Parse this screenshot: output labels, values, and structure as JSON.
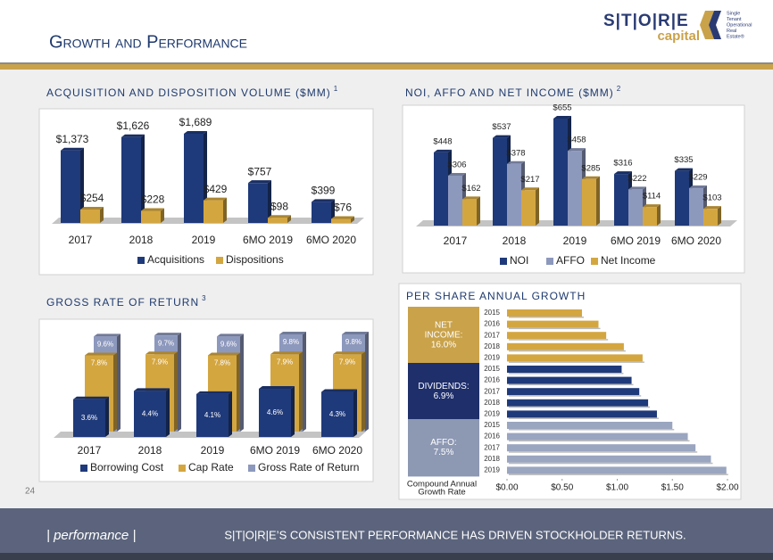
{
  "header": {
    "title": "Growth and Performance",
    "logo": {
      "name": "S|T|O|R|E",
      "sub": "capital",
      "tagline": [
        "Single",
        "Tenant",
        "Operational",
        "Real",
        "Estate®"
      ]
    }
  },
  "page_number": 24,
  "footer": {
    "section": "| performance |",
    "message": "S|T|O|R|E’S CONSISTENT PERFORMANCE HAS DRIVEN STOCKHOLDER RETURNS."
  },
  "chart_data": [
    {
      "type": "bar",
      "title": "ACQUISITION AND DISPOSITION VOLUME ($MM)",
      "footnote": 1,
      "categories": [
        "2017",
        "2018",
        "2019",
        "6MO 2019",
        "6MO 2020"
      ],
      "series": [
        {
          "name": "Acquisitions",
          "color": "#1f3a7a",
          "values": [
            1373,
            1626,
            1689,
            757,
            399
          ],
          "value_labels": [
            "$1,373",
            "$1,626",
            "$1,689",
            "$757",
            "$399"
          ]
        },
        {
          "name": "Dispositions",
          "color": "#d4a640",
          "values": [
            254,
            228,
            429,
            98,
            76
          ],
          "value_labels": [
            "$254",
            "$228",
            "$429",
            "$98",
            "$76"
          ]
        }
      ]
    },
    {
      "type": "bar",
      "title": "NOI, AFFO AND NET INCOME ($MM)",
      "footnote": 2,
      "categories": [
        "2017",
        "2018",
        "2019",
        "6MO 2019",
        "6MO 2020"
      ],
      "series": [
        {
          "name": "NOI",
          "color": "#1f3a7a",
          "values": [
            448,
            537,
            655,
            316,
            335
          ],
          "value_labels": [
            "$448",
            "$537",
            "$655",
            "$316",
            "$335"
          ]
        },
        {
          "name": "AFFO",
          "color": "#8d98bd",
          "values": [
            306,
            378,
            458,
            222,
            229
          ],
          "value_labels": [
            "$306",
            "$378",
            "$458",
            "$222",
            "$229"
          ]
        },
        {
          "name": "Net Income",
          "color": "#d4a640",
          "values": [
            162,
            217,
            285,
            114,
            103
          ],
          "value_labels": [
            "$162",
            "$217",
            "$285",
            "$114",
            "$103"
          ]
        }
      ]
    },
    {
      "type": "overlap_bar",
      "title": "GROSS RATE OF RETURN",
      "footnote": 3,
      "categories": [
        "2017",
        "2018",
        "2019",
        "6MO 2019",
        "6MO 2020"
      ],
      "series": [
        {
          "name": "Borrowing Cost",
          "color": "#1f3a7a",
          "values": [
            3.6,
            4.4,
            4.1,
            4.6,
            4.3
          ],
          "value_labels": [
            "3.6%",
            "4.4%",
            "4.1%",
            "4.6%",
            "4.3%"
          ]
        },
        {
          "name": "Cap Rate",
          "color": "#d4a640",
          "values": [
            7.8,
            7.9,
            7.8,
            7.9,
            7.9
          ],
          "value_labels": [
            "7.8%",
            "7.9%",
            "7.8%",
            "7.9%",
            "7.9%"
          ]
        },
        {
          "name": "Gross Rate of Return",
          "color": "#8d98bd",
          "values": [
            9.6,
            9.7,
            9.6,
            9.8,
            9.8
          ],
          "value_labels": [
            "9.6%",
            "9.7%",
            "9.6%",
            "9.8%",
            "9.8%"
          ]
        }
      ]
    },
    {
      "type": "barh",
      "title": "PER SHARE ANNUAL GROWTH",
      "xlabel": "Compound Annual Growth Rate",
      "xlim": [
        0,
        2
      ],
      "xticks": [
        {
          "value": 0,
          "label": "$0.00"
        },
        {
          "value": 0.5,
          "label": "$0.50"
        },
        {
          "value": 1,
          "label": "$1.00"
        },
        {
          "value": 1.5,
          "label": "$1.50"
        },
        {
          "value": 2,
          "label": "$2.00"
        }
      ],
      "groups": [
        {
          "label": "NET INCOME:",
          "cagr": "16.0%",
          "box_color": "#c9a24a",
          "color": "#d4a640",
          "categories": [
            "2015",
            "2016",
            "2017",
            "2018",
            "2019"
          ],
          "values": [
            0.68,
            0.83,
            0.9,
            1.06,
            1.23
          ]
        },
        {
          "label": "DIVIDENDS:",
          "cagr": "6.9%",
          "box_color": "#1f2f6b",
          "color": "#1f3a7a",
          "categories": [
            "2015",
            "2016",
            "2017",
            "2018",
            "2019"
          ],
          "values": [
            1.04,
            1.13,
            1.2,
            1.28,
            1.36
          ]
        },
        {
          "label": "AFFO:",
          "cagr": "7.5%",
          "box_color": "#8d98b3",
          "color": "#9aa5c0",
          "categories": [
            "2015",
            "2016",
            "2017",
            "2018",
            "2019"
          ],
          "values": [
            1.5,
            1.64,
            1.71,
            1.85,
            1.99
          ]
        }
      ]
    }
  ]
}
